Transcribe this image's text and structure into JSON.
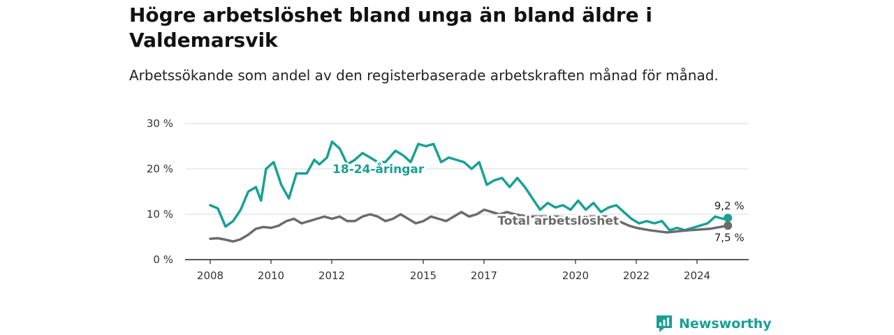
{
  "header": {
    "title": "Högre arbetslöshet bland unga än bland äldre i Valdemarsvik",
    "subtitle": "Arbetssökande som andel av den registerbaserade arbetskraften månad för månad."
  },
  "brand": {
    "name": "Newsworthy",
    "icon": "newsworthy-logo-icon",
    "color": "#18a096"
  },
  "chart_data": {
    "type": "line",
    "title": "Högre arbetslöshet bland unga än bland äldre i Valdemarsvik",
    "subtitle": "Arbetssökande som andel av den registerbaserade arbetskraften månad för månad.",
    "xlabel": "",
    "ylabel": "",
    "x_ticks": [
      "2008",
      "2010",
      "2012",
      "2015",
      "2017",
      "2020",
      "2022",
      "2024"
    ],
    "y_ticks": [
      "0 %",
      "10 %",
      "20 %",
      "30 %"
    ],
    "ylim": [
      0,
      30
    ],
    "xlim": [
      "2008-01",
      "2025-03"
    ],
    "grid": true,
    "series": [
      {
        "name": "18-24-åringar",
        "color": "#18a096",
        "end_label": "9,2 %",
        "points": [
          [
            "2008-01",
            12.0
          ],
          [
            "2008-04",
            11.3
          ],
          [
            "2008-07",
            7.3
          ],
          [
            "2008-10",
            8.5
          ],
          [
            "2009-01",
            11.0
          ],
          [
            "2009-04",
            15.0
          ],
          [
            "2009-07",
            16.0
          ],
          [
            "2009-09",
            13.0
          ],
          [
            "2009-11",
            20.0
          ],
          [
            "2010-02",
            21.5
          ],
          [
            "2010-05",
            16.5
          ],
          [
            "2010-08",
            13.5
          ],
          [
            "2010-11",
            19.0
          ],
          [
            "2011-03",
            19.0
          ],
          [
            "2011-06",
            22.0
          ],
          [
            "2011-08",
            21.0
          ],
          [
            "2011-11",
            22.5
          ],
          [
            "2012-01",
            26.0
          ],
          [
            "2012-04",
            24.5
          ],
          [
            "2012-07",
            21.0
          ],
          [
            "2012-10",
            22.0
          ],
          [
            "2013-01",
            23.5
          ],
          [
            "2013-04",
            22.5
          ],
          [
            "2013-07",
            21.5
          ],
          [
            "2013-10",
            21.5
          ],
          [
            "2014-02",
            24.0
          ],
          [
            "2014-05",
            23.0
          ],
          [
            "2014-08",
            21.5
          ],
          [
            "2014-11",
            25.5
          ],
          [
            "2015-02",
            25.0
          ],
          [
            "2015-05",
            25.5
          ],
          [
            "2015-08",
            21.5
          ],
          [
            "2015-11",
            22.5
          ],
          [
            "2016-02",
            22.0
          ],
          [
            "2016-05",
            21.5
          ],
          [
            "2016-08",
            20.0
          ],
          [
            "2016-11",
            21.5
          ],
          [
            "2017-02",
            16.5
          ],
          [
            "2017-05",
            17.5
          ],
          [
            "2017-08",
            18.0
          ],
          [
            "2017-11",
            16.0
          ],
          [
            "2018-02",
            18.0
          ],
          [
            "2018-05",
            16.0
          ],
          [
            "2018-08",
            13.5
          ],
          [
            "2018-11",
            11.0
          ],
          [
            "2019-02",
            12.5
          ],
          [
            "2019-05",
            11.5
          ],
          [
            "2019-08",
            12.0
          ],
          [
            "2019-11",
            11.0
          ],
          [
            "2020-02",
            13.0
          ],
          [
            "2020-05",
            11.0
          ],
          [
            "2020-08",
            12.5
          ],
          [
            "2020-11",
            10.5
          ],
          [
            "2021-02",
            11.5
          ],
          [
            "2021-05",
            12.0
          ],
          [
            "2021-08",
            10.5
          ],
          [
            "2021-11",
            9.0
          ],
          [
            "2022-02",
            8.0
          ],
          [
            "2022-05",
            8.5
          ],
          [
            "2022-08",
            8.0
          ],
          [
            "2022-11",
            8.5
          ],
          [
            "2023-02",
            6.5
          ],
          [
            "2023-05",
            7.0
          ],
          [
            "2023-08",
            6.5
          ],
          [
            "2023-11",
            7.0
          ],
          [
            "2024-02",
            7.5
          ],
          [
            "2024-05",
            8.0
          ],
          [
            "2024-08",
            9.5
          ],
          [
            "2024-11",
            9.0
          ],
          [
            "2025-01",
            9.2
          ]
        ]
      },
      {
        "name": "Total arbetslöshet",
        "color": "#6b6b6b",
        "end_label": "7,5 %",
        "points": [
          [
            "2008-01",
            4.6
          ],
          [
            "2008-04",
            4.7
          ],
          [
            "2008-07",
            4.4
          ],
          [
            "2008-10",
            4.0
          ],
          [
            "2009-01",
            4.5
          ],
          [
            "2009-04",
            5.5
          ],
          [
            "2009-07",
            6.8
          ],
          [
            "2009-10",
            7.2
          ],
          [
            "2010-01",
            7.0
          ],
          [
            "2010-04",
            7.5
          ],
          [
            "2010-07",
            8.5
          ],
          [
            "2010-10",
            9.0
          ],
          [
            "2011-01",
            8.0
          ],
          [
            "2011-04",
            8.5
          ],
          [
            "2011-07",
            9.0
          ],
          [
            "2011-10",
            9.5
          ],
          [
            "2012-01",
            9.0
          ],
          [
            "2012-04",
            9.5
          ],
          [
            "2012-07",
            8.5
          ],
          [
            "2012-10",
            8.5
          ],
          [
            "2013-01",
            9.5
          ],
          [
            "2013-04",
            10.0
          ],
          [
            "2013-07",
            9.5
          ],
          [
            "2013-10",
            8.5
          ],
          [
            "2014-01",
            9.0
          ],
          [
            "2014-04",
            10.0
          ],
          [
            "2014-07",
            9.0
          ],
          [
            "2014-10",
            8.0
          ],
          [
            "2015-01",
            8.5
          ],
          [
            "2015-04",
            9.5
          ],
          [
            "2015-07",
            9.0
          ],
          [
            "2015-10",
            8.5
          ],
          [
            "2016-01",
            9.5
          ],
          [
            "2016-04",
            10.5
          ],
          [
            "2016-07",
            9.5
          ],
          [
            "2016-10",
            10.0
          ],
          [
            "2017-01",
            11.0
          ],
          [
            "2017-04",
            10.5
          ],
          [
            "2017-07",
            10.0
          ],
          [
            "2017-10",
            10.5
          ],
          [
            "2018-01",
            10.0
          ],
          [
            "2018-06",
            9.5
          ],
          [
            "2019-01",
            9.5
          ],
          [
            "2019-06",
            9.5
          ],
          [
            "2020-01",
            9.0
          ],
          [
            "2020-06",
            9.5
          ],
          [
            "2021-01",
            9.5
          ],
          [
            "2021-06",
            8.5
          ],
          [
            "2021-10",
            7.5
          ],
          [
            "2022-01",
            7.0
          ],
          [
            "2022-06",
            6.5
          ],
          [
            "2022-10",
            6.2
          ],
          [
            "2023-01",
            6.0
          ],
          [
            "2023-06",
            6.3
          ],
          [
            "2023-10",
            6.5
          ],
          [
            "2024-01",
            6.6
          ],
          [
            "2024-06",
            6.8
          ],
          [
            "2024-10",
            7.2
          ],
          [
            "2025-01",
            7.5
          ]
        ]
      }
    ]
  }
}
